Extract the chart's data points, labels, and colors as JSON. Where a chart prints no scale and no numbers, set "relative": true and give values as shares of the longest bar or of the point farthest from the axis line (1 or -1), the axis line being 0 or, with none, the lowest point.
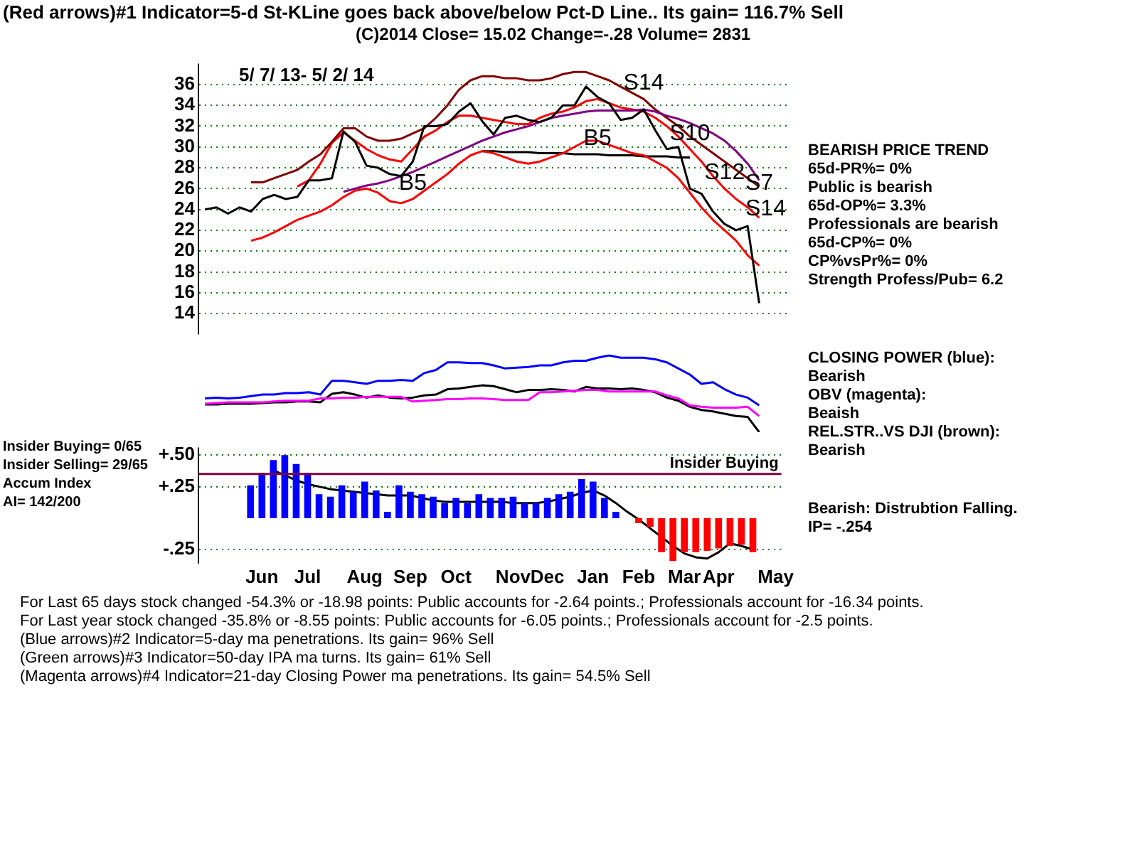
{
  "chart_data": [
    {
      "type": "line",
      "title": "(Red arrows)#1 Indicator=5-d St-KLine goes back above/below Pct-D Line.. Its gain= 116.7% Sell",
      "subtitle": "(C)2014      Close=  15.02   Change=-.28 Volume= 2831",
      "categories": [
        null,
        null,
        null,
        null,
        null,
        "Jun",
        null,
        null,
        null,
        "Jul",
        null,
        null,
        null,
        null,
        "Aug",
        null,
        null,
        null,
        "Sep",
        null,
        null,
        null,
        "Oct",
        null,
        null,
        null,
        null,
        "Nov",
        null,
        null,
        "Dec",
        null,
        null,
        null,
        "Jan",
        null,
        null,
        null,
        "Feb",
        null,
        null,
        null,
        "Mar",
        null,
        null,
        "Apr",
        null,
        null,
        null,
        null,
        "May"
      ],
      "series": [
        {
          "color": "#000000",
          "values": [
            24.0,
            24.2,
            23.6,
            24.2,
            23.8,
            25.0,
            25.4,
            25.0,
            25.2,
            26.8,
            26.8,
            27.0,
            31.5,
            30.5,
            28.2,
            28.0,
            27.4,
            27.2,
            28.6,
            32.0,
            32.0,
            32.2,
            33.4,
            34.2,
            32.5,
            31.2,
            32.8,
            33.0,
            32.6,
            32.4,
            32.8,
            34.0,
            34.0,
            35.8,
            34.8,
            34.2,
            32.6,
            32.8,
            33.6,
            31.6,
            29.8,
            30.0,
            26.0,
            25.5,
            23.8,
            22.6,
            22.0,
            22.4,
            15.0,
            null,
            null
          ]
        },
        {
          "color": "#800080",
          "values": [
            null,
            null,
            null,
            null,
            null,
            null,
            null,
            null,
            null,
            null,
            null,
            null,
            25.7,
            26.0,
            26.3,
            26.5,
            26.8,
            27.2,
            27.6,
            28.1,
            28.6,
            29.1,
            29.6,
            30.1,
            30.6,
            31.0,
            31.4,
            31.7,
            32.0,
            32.4,
            32.8,
            33.0,
            33.2,
            33.4,
            33.5,
            33.5,
            33.5,
            33.5,
            33.6,
            33.4,
            33.0,
            32.7,
            32.3,
            31.8,
            31.3,
            30.6,
            29.6,
            28.4,
            26.8,
            null,
            null
          ]
        },
        {
          "color": "#800000",
          "values": [
            null,
            null,
            null,
            null,
            26.6,
            26.6,
            27.0,
            27.4,
            27.8,
            28.6,
            29.3,
            30.5,
            31.8,
            31.8,
            31.0,
            30.6,
            30.6,
            30.8,
            31.3,
            31.8,
            32.8,
            34.0,
            35.5,
            36.4,
            36.8,
            36.8,
            36.6,
            36.6,
            36.4,
            36.4,
            36.6,
            37.0,
            37.2,
            37.2,
            36.8,
            36.4,
            35.8,
            35.2,
            34.6,
            33.6,
            32.8,
            32.0,
            31.0,
            30.2,
            29.4,
            28.6,
            27.8,
            27.0,
            26.2,
            null,
            null
          ]
        },
        {
          "color": "#ff0000",
          "values": [
            null,
            null,
            null,
            null,
            null,
            null,
            null,
            null,
            26.2,
            26.8,
            28.4,
            30.4,
            31.4,
            30.6,
            29.8,
            29.2,
            28.8,
            28.6,
            29.8,
            31.0,
            31.6,
            32.4,
            33.0,
            33.0,
            32.8,
            32.6,
            32.4,
            32.2,
            32.2,
            32.8,
            33.2,
            33.4,
            33.8,
            34.4,
            34.6,
            34.2,
            33.8,
            33.6,
            33.4,
            32.8,
            32.0,
            31.0,
            29.8,
            28.6,
            27.2,
            26.0,
            25.0,
            24.2,
            23.2,
            null,
            null
          ]
        },
        {
          "color": "#ff0000",
          "values": [
            null,
            null,
            null,
            null,
            21.0,
            21.3,
            21.8,
            22.4,
            23.0,
            23.4,
            23.8,
            24.4,
            25.2,
            25.8,
            26.0,
            25.6,
            24.8,
            24.6,
            25.0,
            25.8,
            26.6,
            27.4,
            28.4,
            29.2,
            29.6,
            29.4,
            29.0,
            28.6,
            28.4,
            28.6,
            29.0,
            29.4,
            30.0,
            30.6,
            30.6,
            30.2,
            29.8,
            29.4,
            29.2,
            28.6,
            28.0,
            27.0,
            25.6,
            24.2,
            23.0,
            22.0,
            21.0,
            19.6,
            18.6,
            null,
            null
          ]
        },
        {
          "color": "#000000",
          "values": [
            null,
            null,
            null,
            null,
            null,
            null,
            null,
            null,
            null,
            null,
            null,
            null,
            null,
            null,
            null,
            null,
            null,
            null,
            null,
            null,
            null,
            null,
            null,
            null,
            29.6,
            29.6,
            29.5,
            29.5,
            29.5,
            29.4,
            29.4,
            29.4,
            29.3,
            29.3,
            29.3,
            29.2,
            29.2,
            29.2,
            29.1,
            29.1,
            29.1,
            29.0,
            29.0,
            null,
            null,
            null,
            null,
            null,
            null,
            null,
            null
          ]
        }
      ],
      "ylim": [
        12,
        38
      ],
      "yticks": [
        14,
        16,
        18,
        20,
        22,
        24,
        26,
        28,
        30,
        32,
        34,
        36
      ],
      "grid": "y",
      "tick_labels": "y",
      "annotations": [
        "5/ 7/ 13- 5/ 2/ 14",
        "S7",
        "S14",
        "BEARISH PRICE TREND",
        "65d-PR%= 0%",
        "Public is bearish",
        "65d-OP%= 3.3%",
        "Professionals are bearish",
        "65d-CP%= 0%",
        "CP%vsPr%=  0%",
        "Strength Profess/Pub= 6.2",
        {
          "text": "S14",
          "x": "Feb",
          "y": 34.6
        },
        {
          "text": "S10",
          "x": "Mar",
          "y": 29.8
        },
        {
          "text": "S12",
          "x": "Apr",
          "y": 26.0
        },
        {
          "text": "B5",
          "x": "Sep",
          "y": 25.0
        },
        {
          "text": "B5",
          "x": "Jan",
          "y": 29.3
        }
      ]
    },
    {
      "type": "line",
      "relative": true,
      "tick_labels": false,
      "categories": [
        null,
        null,
        null,
        null,
        null,
        null,
        null,
        null,
        null,
        null,
        null,
        null,
        null,
        null,
        null,
        null,
        null,
        null,
        null,
        null,
        null,
        null,
        null,
        null,
        null,
        null,
        null,
        null,
        null,
        null,
        null,
        null,
        null,
        null,
        null,
        null,
        null,
        null,
        null,
        null,
        null,
        null,
        null,
        null,
        null,
        null,
        null,
        null,
        null,
        null,
        null
      ],
      "series": [
        {
          "color": "#0000ff",
          "values": [
            0.44,
            0.45,
            0.44,
            0.45,
            0.47,
            0.49,
            0.49,
            0.51,
            0.51,
            0.52,
            0.49,
            0.67,
            0.67,
            0.65,
            0.63,
            0.67,
            0.67,
            0.68,
            0.67,
            0.77,
            0.81,
            0.91,
            0.91,
            0.9,
            0.9,
            0.87,
            0.83,
            0.84,
            0.85,
            0.87,
            0.87,
            0.91,
            0.93,
            0.93,
            0.97,
            1,
            0.97,
            0.97,
            0.97,
            0.95,
            0.91,
            0.83,
            0.75,
            0.63,
            0.65,
            0.56,
            0.49,
            0.45,
            0.35,
            null,
            null
          ]
        },
        {
          "color": "#ff00ff",
          "values": [
            0.37,
            0.38,
            0.39,
            0.39,
            0.39,
            0.39,
            0.4,
            0.41,
            0.41,
            0.41,
            0.44,
            0.44,
            0.45,
            0.45,
            0.46,
            0.46,
            0.46,
            0.46,
            0.4,
            0.41,
            0.42,
            0.43,
            0.43,
            0.44,
            0.44,
            0.43,
            0.42,
            0.42,
            0.42,
            0.52,
            0.52,
            0.53,
            0.54,
            0.55,
            0.55,
            0.53,
            0.53,
            0.53,
            0.53,
            0.53,
            0.48,
            0.44,
            0.35,
            0.33,
            0.32,
            0.32,
            0.32,
            0.33,
            0.21,
            null,
            null
          ]
        },
        {
          "color": "#000000",
          "values": [
            0.36,
            0.36,
            0.37,
            0.37,
            0.37,
            0.38,
            0.39,
            0.39,
            0.4,
            0.4,
            0.39,
            0.5,
            0.52,
            0.49,
            0.45,
            0.48,
            0.45,
            0.44,
            0.45,
            0.48,
            0.49,
            0.56,
            0.57,
            0.59,
            0.61,
            0.6,
            0.56,
            0.52,
            0.55,
            0.55,
            0.56,
            0.55,
            0.53,
            0.59,
            0.57,
            0.57,
            0.56,
            0.57,
            0.55,
            0.52,
            0.45,
            0.41,
            0.33,
            0.29,
            0.27,
            0.24,
            0.21,
            0.2,
            0,
            null,
            null
          ]
        }
      ],
      "annotations": [
        "CLOSING POWER (blue):",
        "Bearish",
        "OBV (magenta):",
        "Beaish",
        "REL.STR..VS DJI (brown):",
        "Bearish"
      ]
    },
    {
      "type": "bar",
      "ylabel": "Accum Index",
      "categories": [
        null,
        null,
        null,
        null,
        null,
        "Jun",
        null,
        null,
        null,
        "Jul",
        null,
        null,
        null,
        null,
        "Aug",
        null,
        null,
        null,
        "Sep",
        null,
        null,
        null,
        "Oct",
        null,
        null,
        null,
        null,
        "Nov",
        null,
        null,
        "Dec",
        null,
        null,
        null,
        "Jan",
        null,
        null,
        null,
        "Feb",
        null,
        null,
        null,
        "Mar",
        null,
        null,
        "Apr",
        null,
        null,
        null,
        null,
        "May"
      ],
      "series": [
        {
          "color": "#0000ff",
          "colors": [
            "#0000ff",
            "#0000ff",
            "#0000ff",
            "#0000ff",
            "#0000ff",
            "#0000ff",
            "#0000ff",
            "#0000ff",
            "#0000ff",
            "#0000ff",
            "#0000ff",
            "#0000ff",
            "#0000ff",
            "#0000ff",
            "#0000ff",
            "#0000ff",
            "#0000ff",
            "#0000ff",
            "#0000ff",
            "#0000ff",
            "#0000ff",
            "#0000ff",
            "#0000ff",
            "#0000ff",
            "#0000ff",
            "#0000ff",
            "#0000ff",
            "#0000ff",
            "#0000ff",
            "#0000ff",
            "#0000ff",
            "#0000ff",
            "#0000ff",
            "#0000ff",
            "#0000ff",
            "#0000ff",
            "#0000ff",
            "#ff0000",
            "#ff0000",
            "#ff0000",
            "#ff0000",
            "#ff0000",
            "#ff0000",
            "#ff0000",
            "#ff0000",
            "#ff0000",
            "#ff0000",
            "#ff0000",
            "#ff0000",
            "#ff0000",
            "#ff0000"
          ],
          "values": [
            null,
            null,
            null,
            null,
            0.26,
            0.36,
            0.46,
            0.5,
            0.43,
            0.36,
            0.19,
            0.17,
            0.26,
            0.21,
            0.29,
            0.22,
            0.05,
            0.26,
            0.21,
            0.19,
            0.17,
            0.12,
            0.16,
            0.12,
            0.19,
            0.16,
            0.16,
            0.17,
            0.12,
            0.12,
            0.16,
            0.19,
            0.21,
            0.31,
            0.29,
            0.16,
            0.05,
            null,
            -0.04,
            -0.07,
            -0.27,
            -0.34,
            -0.27,
            -0.27,
            -0.26,
            -0.24,
            -0.22,
            -0.21,
            -0.27,
            null,
            null
          ]
        },
        {
          "type": "line",
          "color": "#000000",
          "values": [
            null,
            null,
            null,
            null,
            null,
            null,
            0.38,
            0.34,
            0.3,
            0.27,
            0.25,
            0.23,
            0.22,
            0.21,
            0.2,
            0.19,
            0.18,
            0.18,
            0.18,
            0.16,
            0.14,
            0.13,
            0.13,
            0.13,
            0.13,
            0.13,
            0.13,
            0.12,
            0.12,
            0.12,
            0.13,
            0.15,
            0.17,
            0.2,
            0.22,
            0.18,
            0.12,
            0.05,
            -0.01,
            -0.08,
            -0.15,
            -0.22,
            -0.28,
            -0.31,
            -0.32,
            -0.27,
            -0.2,
            -0.22,
            -0.25,
            null,
            null
          ]
        }
      ],
      "ylim": [
        -0.36,
        0.56
      ],
      "yticks": [
        {
          "value": 0.5,
          "label": "+.50"
        },
        {
          "value": 0.25,
          "label": "+.25"
        },
        {
          "value": -0.25,
          "label": "-.25"
        }
      ],
      "grid": "y",
      "ref_lines": [
        {
          "axis": "y",
          "value": 0.35,
          "label": "Insider Buying",
          "color": "#800040"
        }
      ],
      "annotations": [
        "Insider Buying= 0/65",
        "Insider Selling= 29/65",
        "AI= 142/200",
        "Bearish: Distrubtion Falling.",
        "IP= -.254",
        "For Last 65 days stock changed -54.3% or -18.98 points:  Public accounts for -2.64 points.;  Professionals account for -16.34 points.",
        "For Last year stock changed -35.8% or -8.55 points:  Public accounts for -6.05 points.;  Professionals account for -2.5 points.",
        "(Blue arrows)#2 Indicator=5-day ma penetrations. Its gain= 96% Sell",
        "(Green arrows)#3 Indicator=50-day IPA ma turns. Its gain= 61% Sell",
        "(Magenta arrows)#4 Indicator=21-day Closing Power ma penetrations. Its gain= 54.5% Sell"
      ]
    }
  ]
}
